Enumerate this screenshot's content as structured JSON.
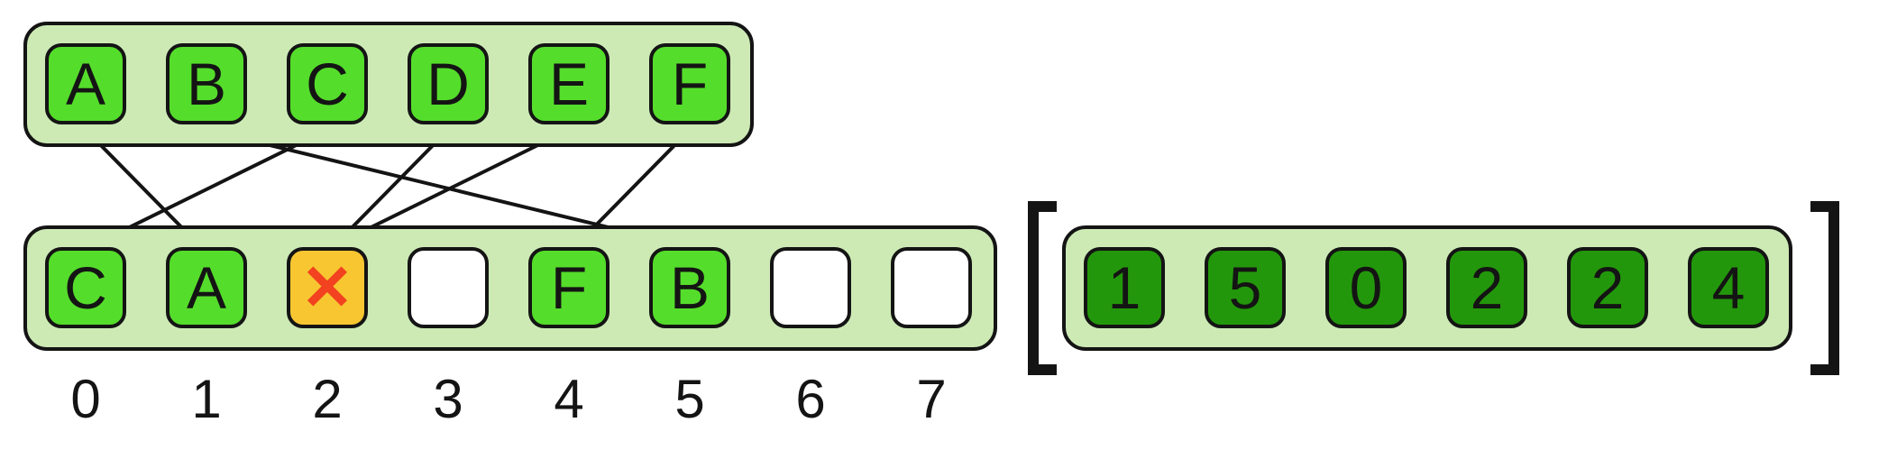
{
  "keys": [
    "A",
    "B",
    "C",
    "D",
    "E",
    "F"
  ],
  "table": [
    {
      "index": "0",
      "key": "C",
      "state": "occupied"
    },
    {
      "index": "1",
      "key": "A",
      "state": "occupied"
    },
    {
      "index": "2",
      "key": "",
      "state": "deleted",
      "icon": "x-icon"
    },
    {
      "index": "3",
      "key": "",
      "state": "empty"
    },
    {
      "index": "4",
      "key": "F",
      "state": "occupied"
    },
    {
      "index": "5",
      "key": "B",
      "state": "occupied"
    },
    {
      "index": "6",
      "key": "",
      "state": "empty"
    },
    {
      "index": "7",
      "key": "",
      "state": "empty"
    }
  ],
  "mapping": [
    {
      "from": "A",
      "to": "1"
    },
    {
      "from": "B",
      "to": "5"
    },
    {
      "from": "C",
      "to": "0"
    },
    {
      "from": "D",
      "to": "2"
    },
    {
      "from": "E",
      "to": "2"
    },
    {
      "from": "F",
      "to": "4"
    }
  ],
  "hash_array": [
    "1",
    "5",
    "0",
    "2",
    "2",
    "4"
  ],
  "deleted_symbol": "✕",
  "colors": {
    "occupied": "#55dd2b",
    "tray": "#cdeab5",
    "deleted": "#f7c631",
    "x_mark": "#f2421f",
    "dark_cell": "#23970b",
    "outline": "#141414"
  }
}
